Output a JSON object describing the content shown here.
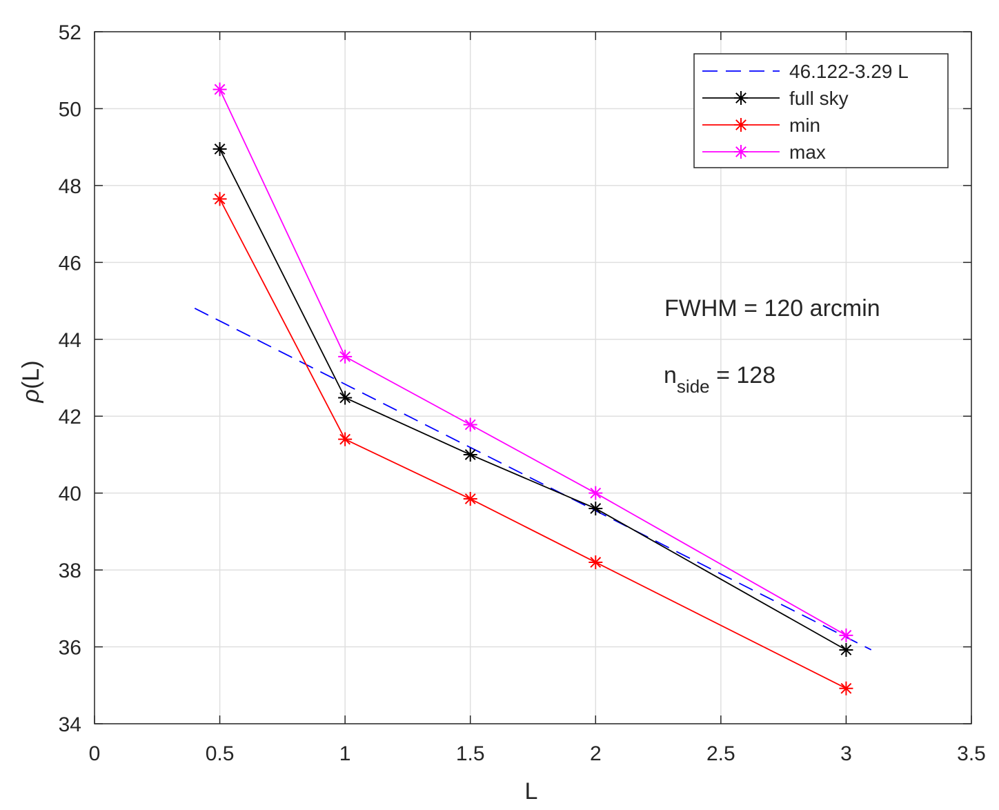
{
  "chart_data": {
    "type": "line",
    "xlabel": "L",
    "ylabel_symbol": "ρ",
    "ylabel_rest": "(L)",
    "xlim": [
      0,
      3.5
    ],
    "ylim": [
      34,
      52
    ],
    "xticks": [
      0,
      0.5,
      1,
      1.5,
      2,
      2.5,
      3,
      3.5
    ],
    "yticks": [
      34,
      36,
      38,
      40,
      42,
      44,
      46,
      48,
      50,
      52
    ],
    "xtick_labels": [
      "0",
      "0.5",
      "1",
      "1.5",
      "2",
      "2.5",
      "3",
      "3.5"
    ],
    "ytick_labels": [
      "34",
      "36",
      "38",
      "40",
      "42",
      "44",
      "46",
      "48",
      "50",
      "52"
    ],
    "grid": true,
    "legend_position": "top-right",
    "fit": {
      "name": "46.122-3.29 L",
      "intercept": 46.122,
      "slope": -3.29,
      "x_range": [
        0.4,
        3.1
      ],
      "color": "#0000ff",
      "style": "dashed"
    },
    "series": [
      {
        "name": "full sky",
        "color": "#000000",
        "x": [
          0.5,
          1,
          1.5,
          2,
          3
        ],
        "values": [
          48.95,
          42.48,
          41.0,
          39.6,
          35.92
        ]
      },
      {
        "name": "min",
        "color": "#ff0000",
        "x": [
          0.5,
          1,
          1.5,
          2,
          3
        ],
        "values": [
          47.65,
          41.4,
          39.85,
          38.2,
          34.92
        ]
      },
      {
        "name": "max",
        "color": "#ff00ff",
        "x": [
          0.5,
          1,
          1.5,
          2,
          3
        ],
        "values": [
          50.5,
          43.55,
          41.78,
          40.0,
          36.3
        ]
      }
    ],
    "annotations": {
      "fwhm": "FWHM = 120 arcmin",
      "nside_base": "n",
      "nside_sub": "side",
      "nside_value": " = 128"
    }
  }
}
